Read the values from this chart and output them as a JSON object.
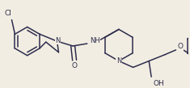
{
  "bg_color": "#f2ede2",
  "line_color": "#2d2d4e",
  "line_width": 1.1,
  "text_color": "#2d2d4e",
  "figsize": [
    2.35,
    1.09
  ],
  "dpi": 100,
  "xlim": [
    0,
    235
  ],
  "ylim": [
    0,
    109
  ]
}
